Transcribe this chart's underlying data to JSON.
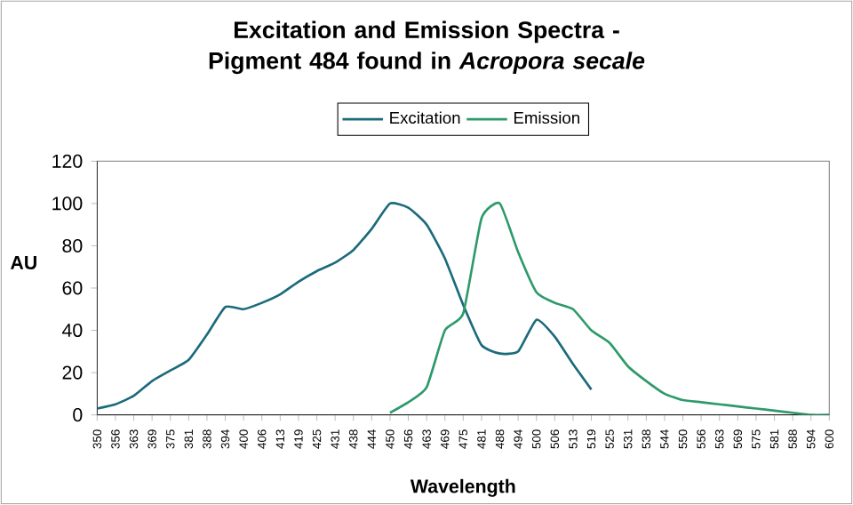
{
  "chart_data": {
    "type": "line",
    "title": "Excitation and Emission Spectra - Pigment 484 found in *Acropora secale*",
    "xlabel": "Wavelength",
    "ylabel": "AU",
    "categories": [
      "350",
      "356",
      "363",
      "369",
      "375",
      "381",
      "388",
      "394",
      "400",
      "406",
      "413",
      "419",
      "425",
      "431",
      "438",
      "444",
      "450",
      "456",
      "463",
      "469",
      "475",
      "481",
      "488",
      "494",
      "500",
      "506",
      "513",
      "519",
      "525",
      "531",
      "538",
      "544",
      "550",
      "556",
      "563",
      "569",
      "575",
      "581",
      "588",
      "594",
      "600"
    ],
    "series": [
      {
        "name": "Excitation",
        "color": "#1b6b7b",
        "values": [
          3,
          5,
          9,
          16,
          21,
          26,
          38,
          51,
          50,
          53,
          57,
          63,
          68,
          72,
          78,
          88,
          100,
          98,
          90,
          74,
          52,
          33,
          29,
          30,
          45,
          37,
          24,
          12,
          null,
          null,
          null,
          null,
          null,
          null,
          null,
          null,
          null,
          null,
          null,
          null,
          null
        ]
      },
      {
        "name": "Emission",
        "color": "#2e9a6a",
        "values": [
          null,
          null,
          null,
          null,
          null,
          null,
          null,
          null,
          null,
          null,
          null,
          null,
          null,
          null,
          null,
          null,
          1,
          6,
          13,
          40,
          48,
          93,
          100,
          77,
          58,
          53,
          50,
          40,
          34,
          23,
          16,
          10,
          7,
          6,
          5,
          4,
          3,
          2,
          1,
          0,
          0
        ]
      }
    ],
    "ylim": [
      0,
      120
    ],
    "yticks": [
      0,
      20,
      40,
      60,
      80,
      100,
      120
    ],
    "legend": "top"
  }
}
